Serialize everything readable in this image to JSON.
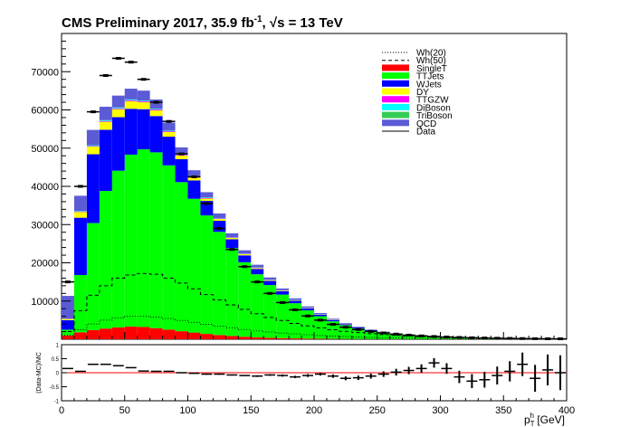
{
  "chart_data": {
    "type": "bar",
    "stacked": true,
    "title": {
      "main": "CMS Preliminary 2017, 35.9 fb",
      "sup": "-1",
      "sep": ", ",
      "sqrt": "√s",
      "energy": " = 13 TeV"
    },
    "xlabel": "p",
    "xlabel_sub": "T",
    "xlabel_sup": "h",
    "xlabel_unit": " [GeV]",
    "ratio_ylabel": "(Data-MC)/MC",
    "xlim": [
      0,
      400
    ],
    "ylim": [
      0,
      80000
    ],
    "ratio_ylim": [
      -1,
      1
    ],
    "x_ticks": [
      0,
      50,
      100,
      150,
      200,
      250,
      300,
      350,
      400
    ],
    "y_ticks": [
      10000,
      20000,
      30000,
      40000,
      50000,
      60000,
      70000
    ],
    "ratio_y_ticks": [
      "1",
      "0.5",
      "0",
      "-0.5",
      "-1"
    ],
    "bin_width": 10,
    "bin_low_edges": [
      0,
      10,
      20,
      30,
      40,
      50,
      60,
      70,
      80,
      90,
      100,
      110,
      120,
      130,
      140,
      150,
      160,
      170,
      180,
      190,
      200,
      210,
      220,
      230,
      240,
      250,
      260,
      270,
      280,
      290,
      300,
      310,
      320,
      330,
      340,
      350,
      360,
      370,
      380,
      390
    ],
    "stack_order_bottom_to_top": [
      "SingleT",
      "TTJets",
      "WJets",
      "DY",
      "TTGZW",
      "DiBoson",
      "TriBoson",
      "QCD"
    ],
    "series": [
      {
        "name": "SingleT",
        "color": "#ff0000",
        "values": [
          1000,
          1800,
          2400,
          2800,
          3100,
          3300,
          3200,
          2900,
          2500,
          2100,
          1750,
          1400,
          1100,
          850,
          650,
          500,
          380,
          290,
          220,
          170,
          130,
          100,
          80,
          60,
          45,
          35,
          28,
          22,
          17,
          13,
          10,
          8,
          6,
          5,
          4,
          3,
          2,
          2,
          2,
          1
        ]
      },
      {
        "name": "TTJets",
        "color": "#00ff00",
        "values": [
          1500,
          15000,
          28000,
          36000,
          41000,
          45000,
          46500,
          46000,
          43000,
          39000,
          35000,
          31000,
          27000,
          23000,
          19500,
          16500,
          13800,
          11400,
          9200,
          7400,
          5900,
          4600,
          3600,
          2800,
          2150,
          1650,
          1250,
          950,
          720,
          550,
          420,
          320,
          250,
          190,
          150,
          115,
          90,
          70,
          55,
          45
        ]
      },
      {
        "name": "WJets",
        "color": "#0000ff",
        "values": [
          2500,
          15000,
          18000,
          16000,
          14000,
          12000,
          10500,
          9500,
          7500,
          6000,
          4800,
          3800,
          2900,
          2300,
          1800,
          1400,
          1100,
          860,
          680,
          540,
          430,
          340,
          270,
          220,
          180,
          150,
          125,
          105,
          90,
          78,
          68,
          60,
          53,
          47,
          42,
          38,
          34,
          31,
          28,
          26
        ]
      },
      {
        "name": "DY",
        "color": "#ffff00",
        "values": [
          300,
          1500,
          2000,
          2100,
          2100,
          2000,
          1800,
          1500,
          1200,
          950,
          750,
          600,
          470,
          370,
          290,
          230,
          180,
          140,
          110,
          90,
          72,
          58,
          47,
          38,
          31,
          26,
          21,
          18,
          15,
          12,
          10,
          9,
          8,
          7,
          6,
          5,
          4,
          4,
          3,
          3
        ]
      },
      {
        "name": "TTGZW",
        "color": "#ff00ff",
        "values": [
          20,
          100,
          160,
          190,
          210,
          220,
          220,
          210,
          195,
          180,
          160,
          140,
          120,
          105,
          90,
          78,
          66,
          56,
          47,
          40,
          34,
          29,
          25,
          21,
          18,
          15,
          13,
          11,
          9,
          8,
          7,
          6,
          5,
          4,
          4,
          3,
          3,
          2,
          2,
          2
        ]
      },
      {
        "name": "DiBoson",
        "color": "#00ffff",
        "values": [
          20,
          120,
          180,
          200,
          200,
          195,
          185,
          170,
          155,
          140,
          125,
          110,
          96,
          84,
          73,
          63,
          54,
          47,
          40,
          35,
          30,
          26,
          22,
          19,
          16,
          14,
          12,
          10,
          9,
          8,
          7,
          6,
          5,
          4,
          4,
          3,
          3,
          2,
          2,
          2
        ]
      },
      {
        "name": "TriBoson",
        "color": "#33cc55",
        "values": [
          5,
          20,
          30,
          35,
          38,
          40,
          40,
          38,
          36,
          33,
          30,
          27,
          24,
          21,
          18,
          16,
          14,
          12,
          10,
          9,
          8,
          7,
          6,
          5,
          4,
          4,
          3,
          3,
          2,
          2,
          2,
          2,
          1,
          1,
          1,
          1,
          1,
          1,
          1,
          1
        ]
      },
      {
        "name": "QCD",
        "color": "#5b5bd6",
        "values": [
          6000,
          4000,
          4000,
          3500,
          3100,
          2800,
          2600,
          2400,
          2100,
          1800,
          1600,
          1400,
          1200,
          1000,
          850,
          700,
          580,
          480,
          390,
          320,
          260,
          210,
          170,
          140,
          115,
          95,
          78,
          64,
          53,
          44,
          37,
          31,
          26,
          22,
          19,
          16,
          14,
          12,
          10,
          9
        ]
      }
    ],
    "signals": [
      {
        "name": "Wh(20)",
        "style": "dotted",
        "values": [
          1000,
          2500,
          4000,
          5000,
          5600,
          6000,
          6000,
          5800,
          5400,
          4900,
          4400,
          3900,
          3400,
          2950,
          2550,
          2200,
          1900,
          1620,
          1380,
          1170,
          990,
          830,
          700,
          590,
          495,
          415,
          350,
          295,
          250,
          210,
          175,
          148,
          125,
          105,
          89,
          75,
          63,
          53,
          45,
          38
        ]
      },
      {
        "name": "Wh(50)",
        "style": "dashed",
        "values": [
          2000,
          7500,
          11500,
          14000,
          16000,
          16800,
          17200,
          17000,
          16000,
          14700,
          13200,
          11700,
          10300,
          9000,
          7800,
          6700,
          5700,
          4900,
          4150,
          3500,
          2950,
          2480,
          2080,
          1740,
          1450,
          1210,
          1010,
          840,
          700,
          585,
          490,
          410,
          343,
          287,
          240,
          200,
          167,
          140,
          117,
          98
        ]
      }
    ],
    "data": {
      "name": "Data",
      "values": [
        15000,
        40000,
        59500,
        69000,
        73500,
        72500,
        68000,
        62000,
        57000,
        48500,
        42500,
        35500,
        29000,
        23500,
        19000,
        15000,
        12000,
        9600,
        7700,
        6100,
        5000,
        3900,
        3150,
        2550,
        2050,
        1650,
        1350,
        1080,
        880,
        720,
        580,
        470,
        390,
        320,
        265,
        220,
        180,
        150,
        125,
        105
      ],
      "ratio": [
        0.15,
        0.05,
        0.3,
        0.3,
        0.25,
        0.18,
        0.06,
        0.05,
        0.05,
        0.0,
        -0.02,
        -0.05,
        -0.05,
        -0.08,
        -0.1,
        -0.12,
        -0.08,
        -0.1,
        -0.15,
        -0.1,
        -0.05,
        -0.12,
        -0.2,
        -0.18,
        -0.12,
        -0.05,
        0.02,
        0.08,
        0.15,
        0.35,
        0.15,
        -0.15,
        -0.3,
        -0.25,
        -0.1,
        0.05,
        0.3,
        -0.2,
        0.1,
        0.0
      ],
      "ratio_err": [
        0.01,
        0.01,
        0.01,
        0.01,
        0.01,
        0.01,
        0.01,
        0.01,
        0.01,
        0.01,
        0.01,
        0.02,
        0.02,
        0.02,
        0.02,
        0.03,
        0.03,
        0.04,
        0.04,
        0.05,
        0.05,
        0.06,
        0.07,
        0.08,
        0.09,
        0.1,
        0.12,
        0.13,
        0.15,
        0.17,
        0.19,
        0.22,
        0.25,
        0.28,
        0.32,
        0.36,
        0.42,
        0.48,
        0.55,
        0.62
      ]
    },
    "legend": {
      "placement": "top-right",
      "entries": [
        {
          "label": "Wh(20)",
          "kind": "dotted-line"
        },
        {
          "label": "Wh(50)",
          "kind": "dashed-line"
        },
        {
          "label": "SingleT",
          "kind": "fill",
          "color": "#ff0000"
        },
        {
          "label": "TTJets",
          "kind": "fill",
          "color": "#00ff00"
        },
        {
          "label": "WJets",
          "kind": "fill",
          "color": "#0000ff"
        },
        {
          "label": "DY",
          "kind": "fill",
          "color": "#ffff00"
        },
        {
          "label": "TTGZW",
          "kind": "fill",
          "color": "#ff00ff"
        },
        {
          "label": "DiBoson",
          "kind": "fill",
          "color": "#00ffff"
        },
        {
          "label": "TriBoson",
          "kind": "fill",
          "color": "#33cc55"
        },
        {
          "label": "QCD",
          "kind": "fill",
          "color": "#5b5bd6"
        },
        {
          "label": "Data",
          "kind": "solid-line"
        }
      ]
    }
  }
}
